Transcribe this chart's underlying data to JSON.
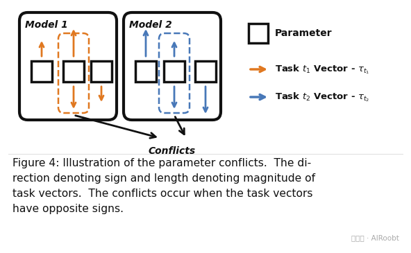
{
  "bg_color": "#ffffff",
  "orange_color": "#E07820",
  "blue_color": "#4878B8",
  "black_color": "#111111",
  "caption_line1": "Figure 4: Illustration of the parameter conflicts.  The di-",
  "caption_line2": "rection denoting sign and length denoting magnitude of",
  "caption_line3": "task vectors.  The conflicts occur when the task vectors",
  "caption_line4": "have opposite signs.",
  "caption_fontsize": 11.2,
  "watermark": "公众号 · AIRoobt",
  "legend_param_label": "Parameter",
  "legend_t1_label": "Task $t_1$ Vector - $\\tau_{t_1}$",
  "legend_t2_label": "Task $t_2$ Vector - $\\tau_{t_2}$"
}
